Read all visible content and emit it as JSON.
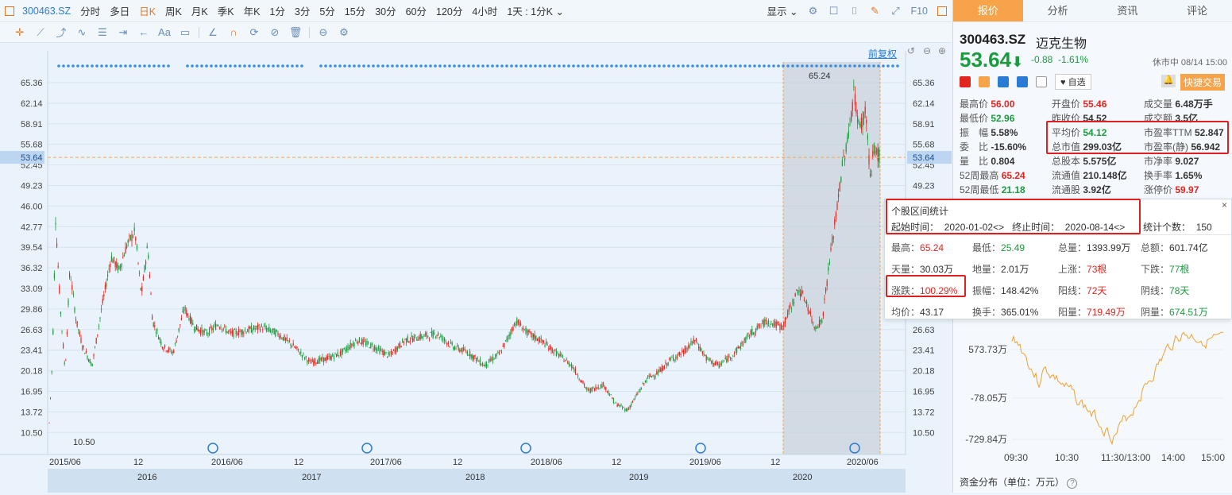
{
  "toolbar": {
    "code": "300463.SZ",
    "periods": [
      "分时",
      "多日",
      "日K",
      "周K",
      "月K",
      "季K",
      "年K",
      "1分",
      "3分",
      "5分",
      "15分",
      "30分",
      "60分",
      "120分",
      "4小时"
    ],
    "active_period": "日K",
    "period_select": "1天 : 1分K",
    "display_label": "显示",
    "f10_label": "F10",
    "adjust_label": "前复权"
  },
  "chart": {
    "y_ticks": [
      "65.36",
      "62.14",
      "58.91",
      "55.68",
      "52.45",
      "49.23",
      "46.00",
      "42.77",
      "39.54",
      "36.32",
      "33.09",
      "29.86",
      "26.63",
      "23.41",
      "20.18",
      "16.95",
      "13.72",
      "10.50"
    ],
    "current_price_label": "53.64",
    "x_ticks": [
      "2015/06",
      "12",
      "2016/06",
      "12",
      "2017/06",
      "12",
      "2018/06",
      "12",
      "2019/06",
      "12",
      "2020/06"
    ],
    "year_ticks": [
      "2016",
      "2017",
      "2018",
      "2019",
      "2020"
    ],
    "max_label": "65.24",
    "min_label": "10.50",
    "colors": {
      "up": "#e2251f",
      "down": "#1a9b3c",
      "accent": "#f6a34a",
      "blue": "#2a7bd4"
    }
  },
  "quote": {
    "code": "300463.SZ",
    "name": "迈克生物",
    "price": "53.64",
    "change": "-0.88",
    "change_pct": "-1.61%",
    "status": "休市中 08/14 15:00",
    "watch_label": "自选",
    "quick_trade_label": "快捷交易",
    "tabs": [
      "报价",
      "分析",
      "资讯",
      "评论"
    ],
    "fields": [
      [
        {
          "l": "最高价",
          "v": "56.00",
          "c": "red"
        },
        {
          "l": "开盘价",
          "v": "55.46",
          "c": "red"
        },
        {
          "l": "成交量",
          "v": "6.48万手",
          "c": ""
        }
      ],
      [
        {
          "l": "最低价",
          "v": "52.96",
          "c": "green"
        },
        {
          "l": "昨收价",
          "v": "54.52",
          "c": ""
        },
        {
          "l": "成交额",
          "v": "3.5亿",
          "c": ""
        }
      ],
      [
        {
          "l": "振　幅",
          "v": "5.58%",
          "c": ""
        },
        {
          "l": "平均价",
          "v": "54.12",
          "c": "green"
        },
        {
          "l": "市盈率TTM",
          "v": "52.847",
          "c": ""
        }
      ],
      [
        {
          "l": "委　比",
          "v": "-15.60%",
          "c": ""
        },
        {
          "l": "总市值",
          "v": "299.03亿",
          "c": ""
        },
        {
          "l": "市盈率(静)",
          "v": "56.942",
          "c": ""
        }
      ],
      [
        {
          "l": "量　比",
          "v": "0.804",
          "c": ""
        },
        {
          "l": "总股本",
          "v": "5.575亿",
          "c": ""
        },
        {
          "l": "市净率",
          "v": "9.027",
          "c": ""
        }
      ],
      [
        {
          "l": "52周最高",
          "v": "65.24",
          "c": "red"
        },
        {
          "l": "流通值",
          "v": "210.148亿",
          "c": ""
        },
        {
          "l": "换手率",
          "v": "1.65%",
          "c": ""
        }
      ],
      [
        {
          "l": "52周最低",
          "v": "21.18",
          "c": "green"
        },
        {
          "l": "流通股",
          "v": "3.92亿",
          "c": ""
        },
        {
          "l": "涨停价",
          "v": "59.97",
          "c": "red"
        }
      ]
    ]
  },
  "range_stats": {
    "title": "个股区间统计",
    "start_label": "起始时间：",
    "start": "2020-01-02",
    "end_label": "终止时间：",
    "end": "2020-08-14",
    "count_label": "统计个数：",
    "count": "150",
    "rows": [
      [
        {
          "l": "最高",
          "v": "65.24",
          "c": "red"
        },
        {
          "l": "最低",
          "v": "25.49",
          "c": "green"
        },
        {
          "l": "总量",
          "v": "1393.99万",
          "c": ""
        },
        {
          "l": "总额",
          "v": "601.74亿",
          "c": ""
        }
      ],
      [
        {
          "l": "天量",
          "v": "30.03万",
          "c": ""
        },
        {
          "l": "地量",
          "v": "2.01万",
          "c": ""
        },
        {
          "l": "上涨",
          "v": "73根",
          "c": "red"
        },
        {
          "l": "下跌",
          "v": "77根",
          "c": "green"
        }
      ],
      [
        {
          "l": "涨跌",
          "v": "100.29%",
          "c": "red"
        },
        {
          "l": "振幅",
          "v": "148.42%",
          "c": ""
        },
        {
          "l": "阳线",
          "v": "72天",
          "c": "red"
        },
        {
          "l": "阴线",
          "v": "78天",
          "c": "green"
        }
      ],
      [
        {
          "l": "均价",
          "v": "43.17",
          "c": ""
        },
        {
          "l": "换手",
          "v": "365.01%",
          "c": ""
        },
        {
          "l": "阳量",
          "v": "719.49万",
          "c": "red"
        },
        {
          "l": "阴量",
          "v": "674.51万",
          "c": "green"
        }
      ]
    ]
  },
  "fund_flow": {
    "y_ticks": [
      "573.73万",
      "-78.05万",
      "-729.84万"
    ],
    "x_ticks": [
      "09:30",
      "10:30",
      "11:30/13:00",
      "14:00",
      "15:00"
    ],
    "title": "资金分布（单位：万元）"
  }
}
